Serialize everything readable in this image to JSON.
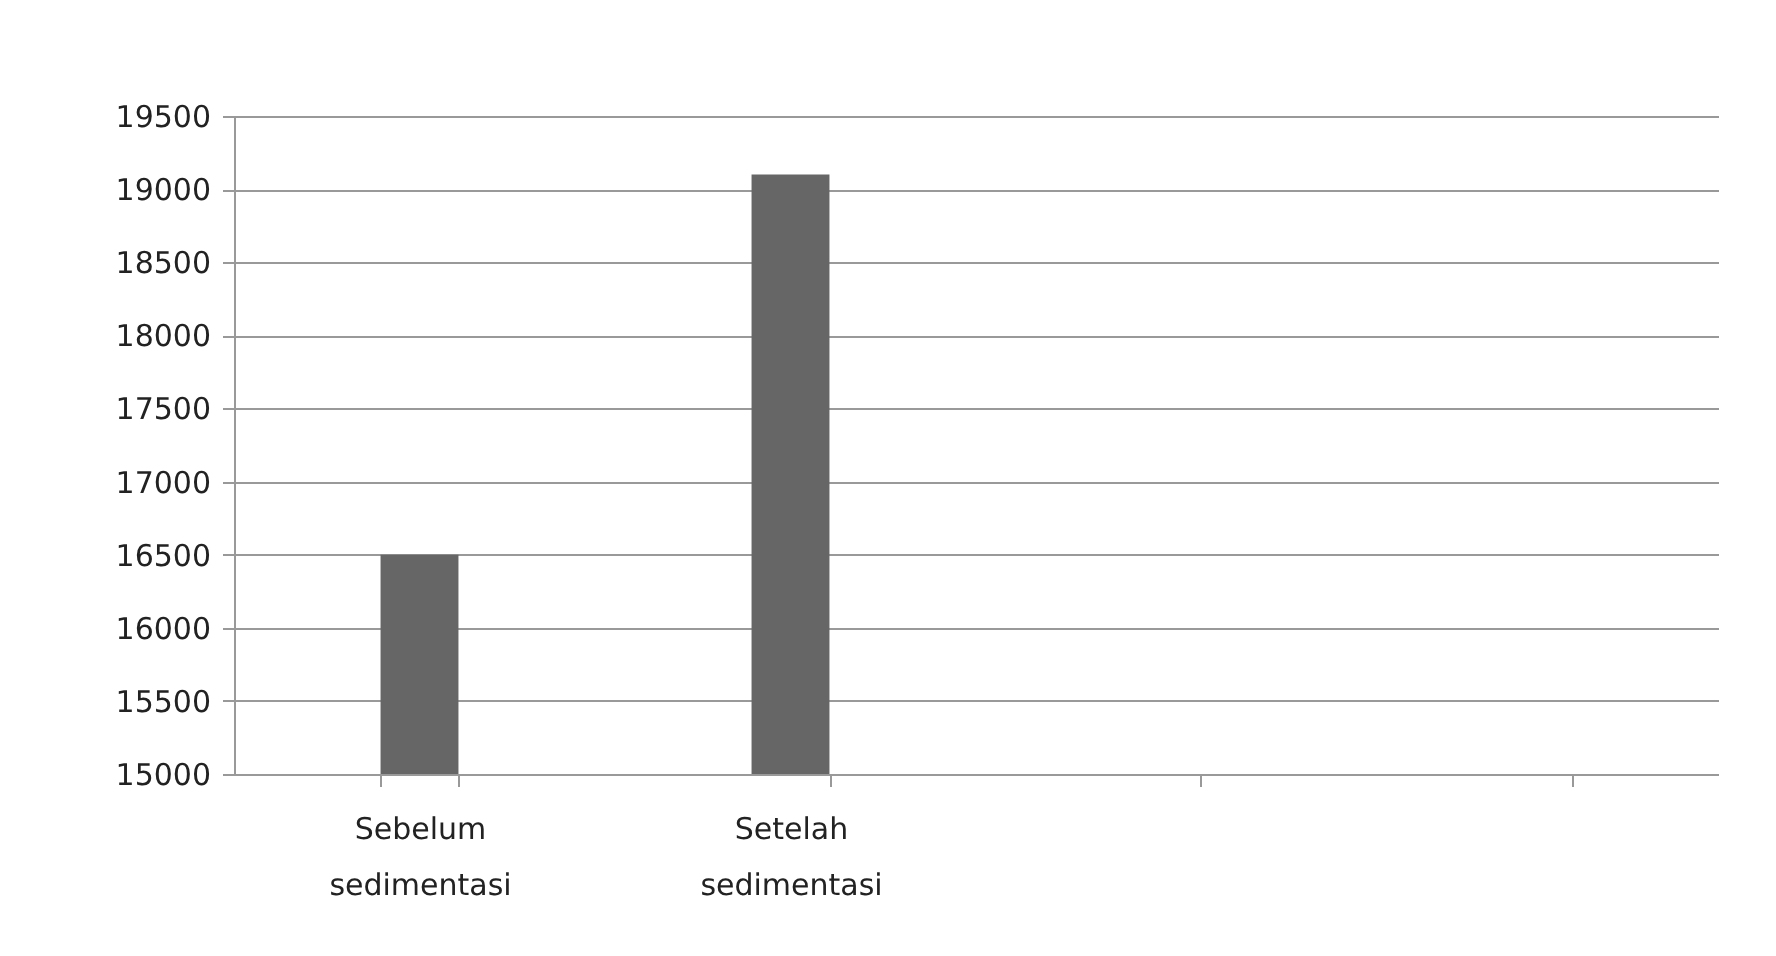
{
  "chart_data": {
    "type": "bar",
    "categories": [
      "Sebelum sedimentasi",
      "Setelah sedimentasi",
      null,
      null
    ],
    "values": [
      16500,
      19100,
      null,
      null
    ],
    "color": "#666666",
    "ylim": [
      15000,
      19500
    ],
    "yticks": [
      15000,
      15500,
      16000,
      16500,
      17000,
      17500,
      18000,
      18500,
      19000,
      19500
    ],
    "grid": "y"
  }
}
